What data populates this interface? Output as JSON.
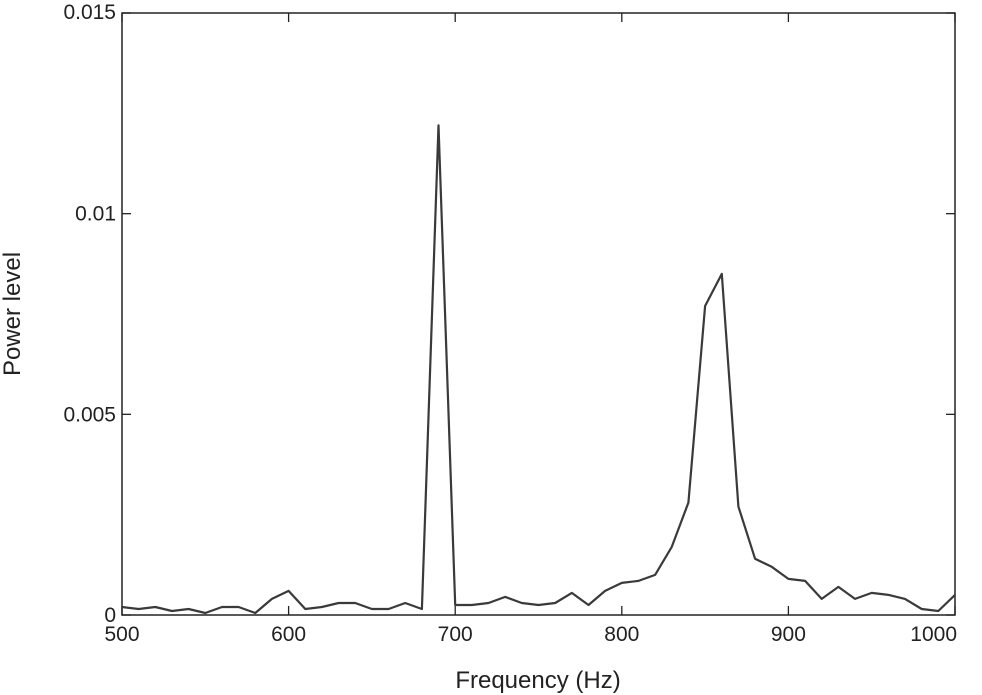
{
  "chart_data": {
    "type": "line",
    "title": "",
    "xlabel": "Frequency (Hz)",
    "ylabel": "Power level",
    "xlim": [
      500,
      1000
    ],
    "ylim": [
      0,
      0.015
    ],
    "xticks": [
      "500",
      "600",
      "700",
      "800",
      "900",
      "1000"
    ],
    "yticks": [
      "0",
      "0.005",
      "0.01",
      "0.015"
    ],
    "grid": false,
    "legend": "none",
    "series": [
      {
        "color": "#3a3a3a",
        "x": [
          500,
          510,
          520,
          530,
          540,
          550,
          560,
          570,
          580,
          590,
          600,
          610,
          620,
          630,
          640,
          650,
          660,
          670,
          680,
          690,
          700,
          710,
          720,
          730,
          740,
          750,
          760,
          770,
          780,
          790,
          800,
          810,
          820,
          830,
          840,
          850,
          860,
          870,
          880,
          890,
          900,
          910,
          920,
          930,
          940,
          950,
          960,
          970,
          980,
          990,
          1000
        ],
        "y": [
          0.0002,
          0.00015,
          0.0002,
          0.0001,
          0.00015,
          5e-05,
          0.0002,
          0.0002,
          5e-05,
          0.0004,
          0.0006,
          0.00015,
          0.0002,
          0.0003,
          0.0003,
          0.00015,
          0.00015,
          0.0003,
          0.00015,
          0.0122,
          0.00025,
          0.00025,
          0.0003,
          0.00045,
          0.0003,
          0.00025,
          0.0003,
          0.00055,
          0.00025,
          0.0006,
          0.0008,
          0.00085,
          0.001,
          0.0017,
          0.0028,
          0.0077,
          0.0085,
          0.0027,
          0.0014,
          0.0012,
          0.0009,
          0.00085,
          0.0004,
          0.0007,
          0.0004,
          0.00055,
          0.0005,
          0.0004,
          0.00015,
          0.0001,
          0.0005
        ]
      }
    ]
  }
}
